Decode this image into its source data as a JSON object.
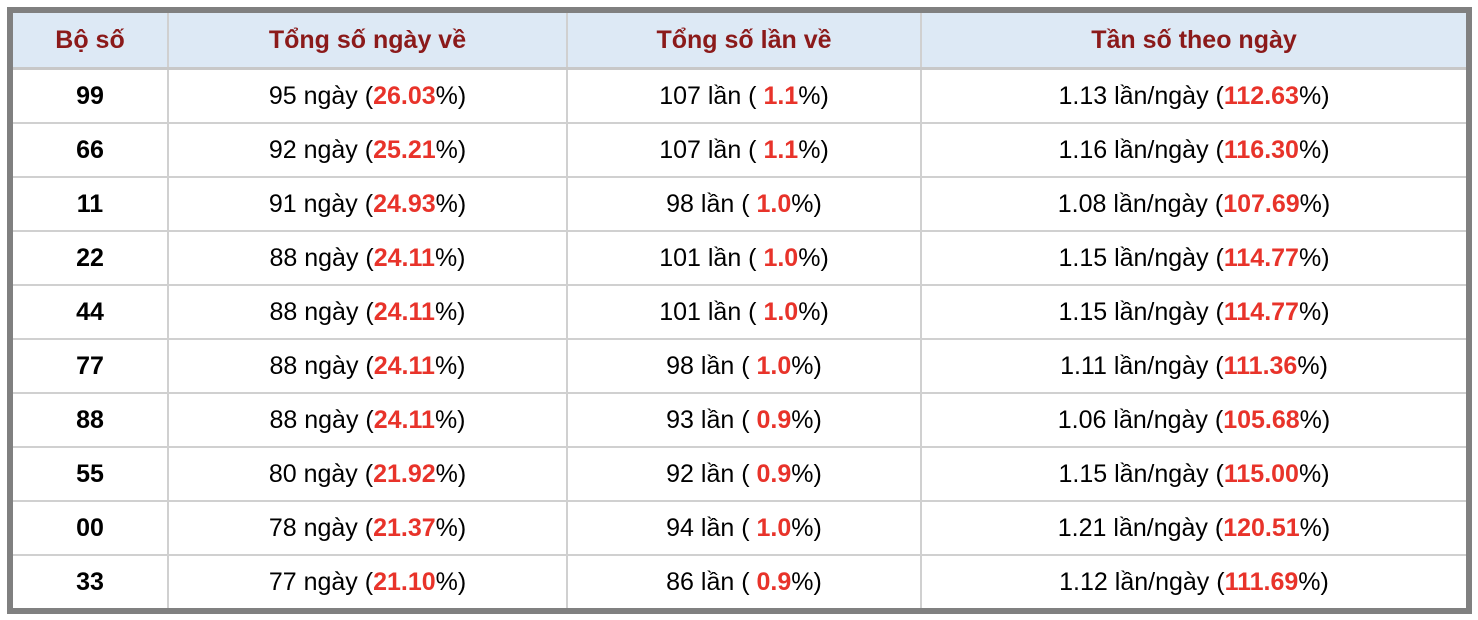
{
  "headers": [
    "Bộ số",
    "Tổng số ngày về",
    "Tổng số lần về",
    "Tần số theo ngày"
  ],
  "accent_color": "#e8332a",
  "header_color": "#8b1a1a",
  "rows": [
    {
      "bo": "99",
      "ngay": "95 ngày (",
      "ngay_pct": "26.03",
      "lan": "107 lần ( ",
      "lan_pct": "1.1",
      "tan": "1.13 lần/ngày (",
      "tan_pct": "112.63"
    },
    {
      "bo": "66",
      "ngay": "92 ngày (",
      "ngay_pct": "25.21",
      "lan": "107 lần ( ",
      "lan_pct": "1.1",
      "tan": "1.16 lần/ngày (",
      "tan_pct": "116.30"
    },
    {
      "bo": "11",
      "ngay": "91 ngày (",
      "ngay_pct": "24.93",
      "lan": "98 lần ( ",
      "lan_pct": "1.0",
      "tan": "1.08 lần/ngày (",
      "tan_pct": "107.69"
    },
    {
      "bo": "22",
      "ngay": "88 ngày (",
      "ngay_pct": "24.11",
      "lan": "101 lần ( ",
      "lan_pct": "1.0",
      "tan": "1.15 lần/ngày (",
      "tan_pct": "114.77"
    },
    {
      "bo": "44",
      "ngay": "88 ngày (",
      "ngay_pct": "24.11",
      "lan": "101 lần ( ",
      "lan_pct": "1.0",
      "tan": "1.15 lần/ngày (",
      "tan_pct": "114.77"
    },
    {
      "bo": "77",
      "ngay": "88 ngày (",
      "ngay_pct": "24.11",
      "lan": "98 lần ( ",
      "lan_pct": "1.0",
      "tan": "1.11 lần/ngày (",
      "tan_pct": "111.36"
    },
    {
      "bo": "88",
      "ngay": "88 ngày (",
      "ngay_pct": "24.11",
      "lan": "93 lần ( ",
      "lan_pct": "0.9",
      "tan": "1.06 lần/ngày (",
      "tan_pct": "105.68"
    },
    {
      "bo": "55",
      "ngay": "80 ngày (",
      "ngay_pct": "21.92",
      "lan": "92 lần ( ",
      "lan_pct": "0.9",
      "tan": "1.15 lần/ngày (",
      "tan_pct": "115.00"
    },
    {
      "bo": "00",
      "ngay": "78 ngày (",
      "ngay_pct": "21.37",
      "lan": "94 lần ( ",
      "lan_pct": "1.0",
      "tan": "1.21 lần/ngày (",
      "tan_pct": "120.51"
    },
    {
      "bo": "33",
      "ngay": "77 ngày (",
      "ngay_pct": "21.10",
      "lan": "86 lần ( ",
      "lan_pct": "0.9",
      "tan": "1.12 lần/ngày (",
      "tan_pct": "111.69"
    }
  ],
  "pct_suffix": "%)"
}
